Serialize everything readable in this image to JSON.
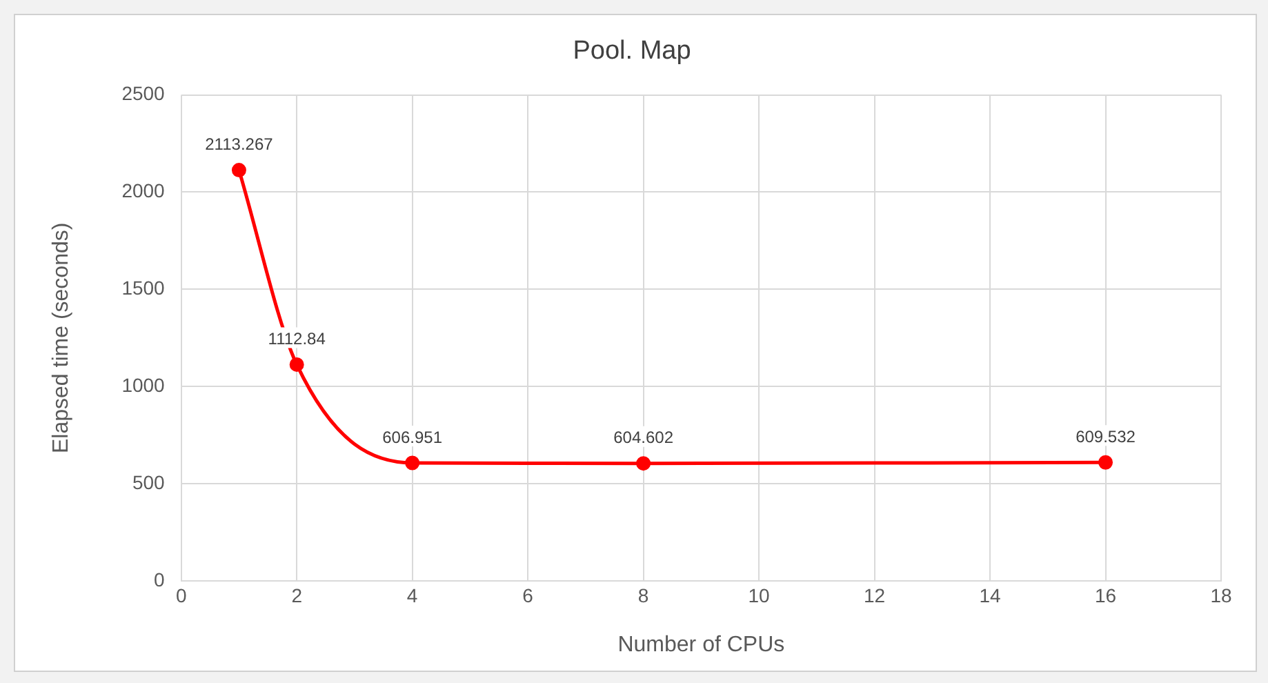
{
  "chart_data": {
    "type": "line",
    "title": "Pool. Map",
    "xlabel": "Number of CPUs",
    "ylabel": "Elapsed time (seconds)",
    "x": [
      1,
      2,
      4,
      8,
      16
    ],
    "series": [
      {
        "color": "#ff0000",
        "values": [
          2113.267,
          1112.84,
          606.951,
          604.602,
          609.532
        ]
      }
    ],
    "xlim": [
      0,
      18
    ],
    "xticks": [
      0,
      2,
      4,
      6,
      8,
      10,
      12,
      14,
      16,
      18
    ],
    "ylim": [
      0,
      2500
    ],
    "yticks": [
      0,
      500,
      1000,
      1500,
      2000,
      2500
    ],
    "grid": true,
    "legend": false,
    "marker": "circle",
    "line_style": "solid",
    "data_labels": true
  }
}
